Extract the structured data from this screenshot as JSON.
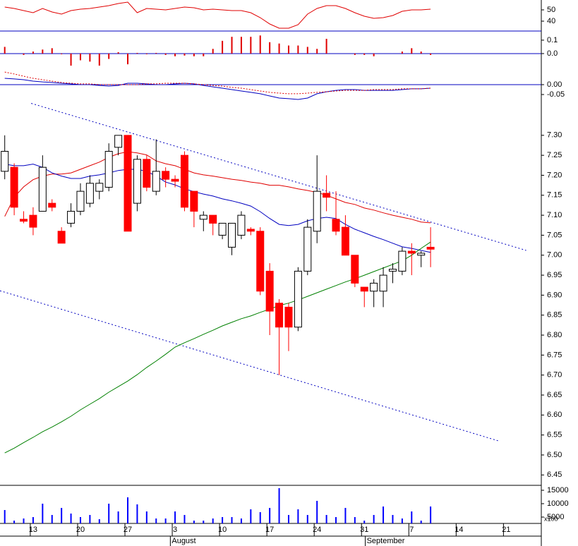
{
  "chart_data": [
    {
      "type": "line",
      "ylim": [
        31.25,
        58.75
      ],
      "yticks": [
        50,
        40
      ],
      "series": [
        {
          "color": "#e00000",
          "values": [
            52.5,
            51.25,
            49.4,
            47.5,
            51.25,
            48.1,
            46.25,
            49.4,
            50.6,
            51.25,
            52.5,
            53.75,
            55.6,
            56.9,
            47.5,
            51.25,
            50.6,
            50,
            51.25,
            52.5,
            51.9,
            50,
            50.6,
            50,
            49.4,
            49.4,
            47.5,
            43.1,
            37.5,
            33.75,
            33.75,
            36.9,
            46.25,
            51.25,
            53.75,
            53.75,
            51.25,
            47.5,
            44.4,
            42.5,
            43.1,
            45,
            48.75,
            50,
            50,
            50.6
          ]
        }
      ]
    },
    {
      "type": "bar",
      "color": "#e00000",
      "zero_line": true,
      "zero_color": "#0000c0",
      "ylim": [
        -0.116,
        0.168
      ],
      "yticks": [
        0.1,
        {
          "value": 0,
          "label": "0.0"
        }
      ],
      "values": [
        0.05,
        0,
        -0.01,
        0.015,
        0.03,
        0.04,
        -0.005,
        -0.09,
        -0.05,
        -0.06,
        -0.09,
        -0.04,
        0.01,
        -0.08,
        0.005,
        -0.005,
        0.005,
        -0.01,
        -0.02,
        -0.015,
        -0.02,
        -0.02,
        0.035,
        0.095,
        0.125,
        0.125,
        0.125,
        0.135,
        0.085,
        0.075,
        0.06,
        0.06,
        0.05,
        0.035,
        0.11,
        0,
        0,
        -0.01,
        -0.01,
        -0.02,
        0,
        0,
        0.015,
        0.04,
        0.015,
        -0.01
      ]
    },
    {
      "type": "line",
      "zero_line": true,
      "zero_color": "#0000c0",
      "ylim": [
        -0.0786,
        0.0786
      ],
      "yticks": [
        {
          "value": 0,
          "label": "0.00"
        },
        -0.05
      ],
      "series": [
        {
          "color": "#0000c0",
          "values": [
            0.032,
            0.029,
            0.025,
            0.018,
            0.014,
            0.011,
            0.007,
            0.004,
            0,
            0,
            -0.004,
            -0.007,
            -0.004,
            0.007,
            0.007,
            0.004,
            0,
            0,
            0.004,
            0.007,
            0.004,
            -0.004,
            -0.011,
            -0.018,
            -0.025,
            -0.032,
            -0.039,
            -0.046,
            -0.057,
            -0.068,
            -0.071,
            -0.075,
            -0.068,
            -0.046,
            -0.036,
            -0.029,
            -0.025,
            -0.025,
            -0.029,
            -0.029,
            -0.029,
            -0.029,
            -0.025,
            -0.021,
            -0.021,
            -0.018
          ]
        },
        {
          "color": "#e00000",
          "style": "dotted",
          "values": [
            0.064,
            0.054,
            0.043,
            0.032,
            0.025,
            0.018,
            0.011,
            0.007,
            0.004,
            0.004,
            0,
            0,
            0,
            0,
            0,
            0.004,
            0.004,
            0.007,
            0.007,
            0.007,
            0.004,
            0,
            -0.004,
            -0.007,
            -0.014,
            -0.018,
            -0.025,
            -0.032,
            -0.039,
            -0.043,
            -0.046,
            -0.046,
            -0.043,
            -0.039,
            -0.036,
            -0.032,
            -0.029,
            -0.029,
            -0.029,
            -0.025,
            -0.025,
            -0.025,
            -0.021,
            -0.021,
            -0.021,
            -0.018
          ]
        }
      ]
    },
    {
      "type": "candlestick",
      "up_color": "#ffffff",
      "down_color": "#ff0000",
      "outline": "#000000",
      "ylim": [
        6.424,
        7.388
      ],
      "yticks": [
        {
          "value": 7.3,
          "label": "7.30"
        },
        7.25,
        {
          "value": 7.2,
          "label": "7.20"
        },
        7.15,
        {
          "value": 7.1,
          "label": "7.10"
        },
        7.05,
        {
          "value": 7,
          "label": "7.00"
        },
        6.95,
        {
          "value": 6.9,
          "label": "6.90"
        },
        6.85,
        {
          "value": 6.8,
          "label": "6.80"
        },
        6.75,
        {
          "value": 6.7,
          "label": "6.70"
        },
        6.65,
        {
          "value": 6.6,
          "label": "6.60"
        },
        6.55,
        {
          "value": 6.5,
          "label": "6.50"
        },
        6.45
      ],
      "open": [
        7.21,
        7.22,
        7.09,
        7.1,
        7.11,
        7.13,
        7.06,
        7.08,
        7.11,
        7.13,
        7.16,
        7.17,
        7.27,
        7.3,
        7.13,
        7.24,
        7.16,
        7.21,
        7.19,
        7.25,
        7.16,
        7.09,
        7.1,
        7.05,
        7.02,
        7.05,
        7.065,
        7.06,
        6.96,
        6.88,
        6.87,
        6.82,
        6.96,
        7.06,
        7.155,
        7.09,
        7.07,
        7.0,
        6.92,
        6.91,
        6.91,
        6.96,
        6.96,
        7.01,
        7.0,
        7.02
      ],
      "high": [
        7.3,
        7.23,
        7.11,
        7.12,
        7.25,
        7.14,
        7.07,
        7.13,
        7.18,
        7.2,
        7.19,
        7.28,
        7.3,
        7.3,
        7.25,
        7.25,
        7.29,
        7.22,
        7.2,
        7.26,
        7.16,
        7.11,
        7.1,
        7.08,
        7.08,
        7.11,
        7.07,
        7.07,
        6.98,
        6.89,
        6.88,
        6.97,
        7.09,
        7.25,
        7.2,
        7.16,
        7.1,
        7.0,
        6.92,
        6.94,
        6.97,
        6.98,
        7.02,
        7.03,
        7.01,
        7.07
      ],
      "low": [
        7.19,
        7.1,
        7.08,
        7.05,
        7.11,
        7.11,
        7.03,
        7.07,
        7.1,
        7.12,
        7.14,
        7.16,
        7.25,
        7.06,
        7.11,
        7.16,
        7.15,
        7.17,
        7.17,
        7.11,
        7.07,
        7.06,
        7.05,
        7.04,
        7.0,
        7.04,
        7.05,
        6.9,
        6.8,
        6.7,
        6.76,
        6.81,
        6.95,
        7.03,
        7.11,
        7.05,
        7.0,
        6.92,
        6.87,
        6.87,
        6.87,
        6.93,
        6.95,
        6.95,
        6.97,
        6.97
      ],
      "close": [
        7.26,
        7.12,
        7.085,
        7.07,
        7.22,
        7.12,
        7.03,
        7.11,
        7.16,
        7.18,
        7.18,
        7.26,
        7.3,
        7.06,
        7.24,
        7.17,
        7.21,
        7.19,
        7.185,
        7.12,
        7.11,
        7.1,
        7.08,
        7.08,
        7.08,
        7.1,
        7.06,
        6.91,
        6.86,
        6.82,
        6.82,
        6.96,
        7.07,
        7.16,
        7.145,
        7.06,
        7.0,
        6.93,
        6.91,
        6.93,
        6.95,
        6.965,
        7.01,
        7.005,
        7.005,
        7.015
      ],
      "series": [
        {
          "color": "#e00000",
          "values": [
            7.097,
            7.145,
            7.171,
            7.189,
            7.198,
            7.203,
            7.203,
            7.206,
            7.215,
            7.224,
            7.233,
            7.245,
            7.254,
            7.259,
            7.256,
            7.251,
            7.236,
            7.229,
            7.224,
            7.215,
            7.206,
            7.201,
            7.198,
            7.194,
            7.19,
            7.187,
            7.183,
            7.18,
            7.175,
            7.175,
            7.171,
            7.166,
            7.162,
            7.157,
            7.15,
            7.141,
            7.132,
            7.127,
            7.118,
            7.113,
            7.106,
            7.1,
            7.095,
            7.09,
            7.083,
            7.081
          ]
        },
        {
          "color": "#0000c0",
          "values": [
            7.228,
            7.224,
            7.224,
            7.228,
            7.22,
            7.206,
            7.198,
            7.192,
            7.192,
            7.198,
            7.201,
            7.206,
            7.212,
            7.215,
            7.215,
            7.21,
            7.198,
            7.183,
            7.176,
            7.166,
            7.159,
            7.153,
            7.148,
            7.141,
            7.136,
            7.13,
            7.123,
            7.109,
            7.092,
            7.077,
            7.074,
            7.077,
            7.086,
            7.092,
            7.095,
            7.092,
            7.077,
            7.065,
            7.056,
            7.047,
            7.039,
            7.03,
            7.021,
            7.017,
            7.012,
            7.007
          ]
        },
        {
          "color": "#008000",
          "values": [
            6.505,
            6.517,
            6.531,
            6.544,
            6.558,
            6.57,
            6.583,
            6.597,
            6.613,
            6.627,
            6.641,
            6.657,
            6.671,
            6.685,
            6.701,
            6.719,
            6.735,
            6.752,
            6.77,
            6.781,
            6.791,
            6.802,
            6.812,
            6.823,
            6.832,
            6.841,
            6.848,
            6.857,
            6.865,
            6.874,
            6.88,
            6.888,
            6.897,
            6.906,
            6.915,
            6.924,
            6.933,
            6.941,
            6.95,
            6.959,
            6.968,
            6.977,
            6.986,
            7.0,
            7.017,
            7.033
          ]
        }
      ],
      "trendlines": [
        {
          "color": "#0000c0",
          "style": "dotted",
          "x": [
            2.8,
            55.1
          ],
          "values": [
            7.38,
            7.012
          ]
        },
        {
          "color": "#0000c0",
          "style": "dotted",
          "x": [
            -0.5,
            52.2
          ],
          "values": [
            6.911,
            6.535
          ]
        }
      ]
    },
    {
      "type": "bar",
      "color": "#0000ff",
      "ylim": [
        2632,
        16842
      ],
      "yticks": [
        15000,
        10000,
        5000
      ],
      "y_unit": "x100",
      "xlim": [
        -0.5,
        56.7
      ],
      "xticks": [
        {
          "value": 3,
          "label": "13"
        },
        {
          "value": 8,
          "label": "20"
        },
        {
          "value": 13,
          "label": "27"
        },
        {
          "value": 18,
          "label": "3"
        },
        {
          "value": 23,
          "label": "10"
        },
        {
          "value": 28,
          "label": "17"
        },
        {
          "value": 33,
          "label": "24"
        },
        {
          "value": 38,
          "label": "31"
        },
        {
          "value": 43,
          "label": "7"
        },
        {
          "value": 48,
          "label": "14"
        },
        {
          "value": 53,
          "label": "21"
        }
      ],
      "month_labels": [
        {
          "value": 17.5,
          "label": "August"
        },
        {
          "value": 38.1,
          "label": "September"
        }
      ],
      "values": [
        7632,
        3684,
        4474,
        5000,
        10000,
        5789,
        8421,
        6316,
        5000,
        5789,
        4211,
        10000,
        7105,
        12368,
        9737,
        7105,
        4474,
        4474,
        7105,
        5789,
        3684,
        3684,
        4474,
        5000,
        5000,
        4474,
        7895,
        6842,
        8421,
        15789,
        5789,
        7895,
        5789,
        11053,
        5789,
        5000,
        8421,
        5000,
        3684,
        5789,
        8947,
        5789,
        4474,
        7105,
        3684,
        8947
      ]
    }
  ]
}
